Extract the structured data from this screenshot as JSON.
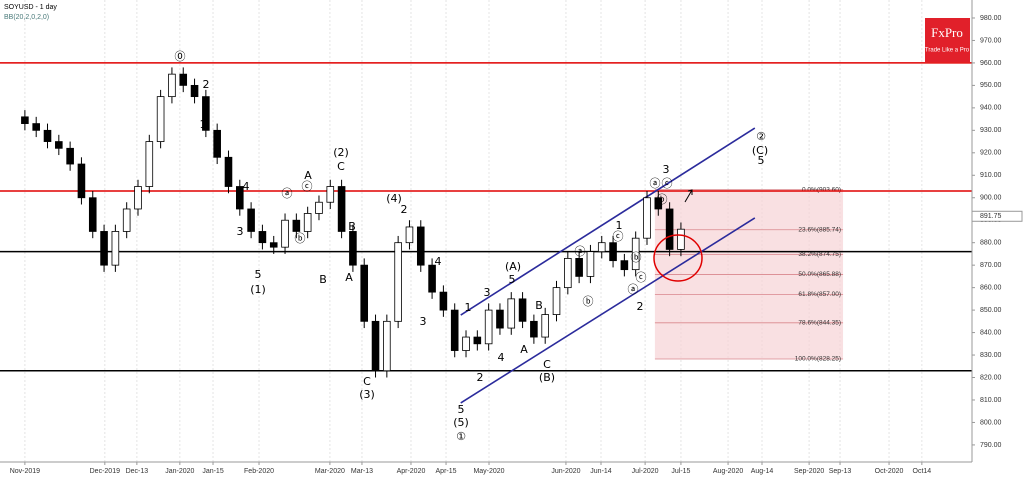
{
  "chart_data": {
    "type": "candlestick",
    "title": "SOYUSD - 1 day",
    "subtitle": "BB(20,2,0,2,0)",
    "logo": {
      "name": "FxPro",
      "tagline": "Trade Like a Pro",
      "color": "#e1202a"
    },
    "up_color": "#ffffff",
    "down_color": "#000000",
    "x": [
      0,
      3,
      6,
      9,
      12,
      15,
      18,
      21,
      24,
      27,
      30,
      33,
      36,
      39,
      42,
      45,
      48,
      51,
      54,
      57,
      60,
      63,
      66,
      69,
      72,
      75,
      78,
      81,
      84,
      87,
      90,
      93,
      96,
      99,
      102,
      105,
      108,
      111,
      114,
      117,
      120,
      123,
      126,
      129,
      132,
      135,
      138,
      141,
      144,
      147,
      150,
      153,
      156,
      159,
      162,
      165,
      168,
      171,
      174
    ],
    "open": [
      936,
      933,
      930,
      925,
      922,
      915,
      900,
      885,
      870,
      885,
      895,
      905,
      925,
      945,
      955,
      950,
      945,
      930,
      918,
      905,
      895,
      885,
      880,
      878,
      890,
      885,
      893,
      898,
      905,
      885,
      870,
      845,
      823,
      845,
      880,
      887,
      870,
      858,
      850,
      832,
      838,
      835,
      850,
      842,
      855,
      845,
      838,
      848,
      860,
      873,
      865,
      876,
      880,
      872,
      868,
      882,
      900,
      895,
      877
    ],
    "high": [
      939,
      936,
      933,
      928,
      925,
      918,
      903,
      888,
      888,
      898,
      908,
      928,
      948,
      958,
      958,
      953,
      948,
      933,
      921,
      908,
      898,
      888,
      883,
      893,
      893,
      896,
      901,
      908,
      908,
      888,
      873,
      848,
      848,
      883,
      890,
      890,
      873,
      861,
      853,
      841,
      841,
      853,
      853,
      858,
      858,
      848,
      851,
      863,
      876,
      876,
      879,
      883,
      883,
      875,
      885,
      903,
      903,
      898,
      889
    ],
    "low": [
      930,
      927,
      922,
      919,
      912,
      897,
      882,
      867,
      867,
      882,
      892,
      902,
      922,
      942,
      947,
      942,
      927,
      915,
      902,
      892,
      882,
      877,
      875,
      875,
      882,
      882,
      890,
      895,
      882,
      867,
      842,
      820,
      820,
      842,
      877,
      867,
      855,
      847,
      829,
      829,
      832,
      832,
      839,
      839,
      842,
      835,
      835,
      845,
      857,
      862,
      862,
      873,
      869,
      865,
      865,
      879,
      892,
      874,
      874
    ],
    "close": [
      933,
      930,
      925,
      922,
      915,
      900,
      885,
      870,
      885,
      895,
      905,
      925,
      945,
      955,
      950,
      945,
      930,
      918,
      905,
      895,
      885,
      880,
      878,
      890,
      885,
      893,
      898,
      905,
      885,
      870,
      845,
      823,
      845,
      880,
      887,
      870,
      858,
      850,
      832,
      838,
      835,
      850,
      842,
      855,
      845,
      838,
      848,
      860,
      873,
      865,
      876,
      880,
      872,
      868,
      882,
      900,
      895,
      877,
      886
    ],
    "xlim": [
      -6.6,
      251.2
    ],
    "xticks": [
      {
        "value": 0,
        "label": "Nov-2019"
      },
      {
        "value": 21.2,
        "label": "Dec-2019"
      },
      {
        "value": 29.7,
        "label": "Dec-13"
      },
      {
        "value": 41.1,
        "label": "Jan-2020"
      },
      {
        "value": 49.9,
        "label": "Jan-15"
      },
      {
        "value": 62.1,
        "label": "Feb-2020"
      },
      {
        "value": 80.9,
        "label": "Mar-2020"
      },
      {
        "value": 89.4,
        "label": "Mar-13"
      },
      {
        "value": 102.4,
        "label": "Apr-2020"
      },
      {
        "value": 111.7,
        "label": "Apr-15"
      },
      {
        "value": 123.1,
        "label": "May-2020"
      },
      {
        "value": 143.5,
        "label": "Jun-2020"
      },
      {
        "value": 152.8,
        "label": "Jun-14"
      },
      {
        "value": 164.5,
        "label": "Jul-2020"
      },
      {
        "value": 174,
        "label": "Jul-15"
      },
      {
        "value": 186.5,
        "label": "Aug-2020"
      },
      {
        "value": 195.5,
        "label": "Aug-14"
      },
      {
        "value": 208,
        "label": "Sep-2020"
      },
      {
        "value": 216.2,
        "label": "Sep-13"
      },
      {
        "value": 229.2,
        "label": "Oct-2020"
      },
      {
        "value": 237.9,
        "label": "Oct14"
      }
    ],
    "ylim": [
      782.4,
      988
    ],
    "yticks": [
      {
        "value": 980,
        "label": "980.00"
      },
      {
        "value": 970,
        "label": "970.00"
      },
      {
        "value": 960,
        "label": "960.00"
      },
      {
        "value": 950,
        "label": "950.00"
      },
      {
        "value": 940,
        "label": "940.00"
      },
      {
        "value": 930,
        "label": "930.00"
      },
      {
        "value": 920,
        "label": "920.00"
      },
      {
        "value": 910,
        "label": "910.00"
      },
      {
        "value": 900,
        "label": "900.00"
      },
      {
        "value": 890,
        "label": "890.00"
      },
      {
        "value": 880,
        "label": "880.00"
      },
      {
        "value": 870,
        "label": "870.00"
      },
      {
        "value": 860,
        "label": "860.00"
      },
      {
        "value": 850,
        "label": "850.00"
      },
      {
        "value": 840,
        "label": "840.00"
      },
      {
        "value": 830,
        "label": "830.00"
      },
      {
        "value": 820,
        "label": "820.00"
      },
      {
        "value": 810,
        "label": "810.00"
      },
      {
        "value": 800,
        "label": "800.00"
      },
      {
        "value": 790,
        "label": "790.00"
      }
    ],
    "grid": true,
    "last_price": 891.75,
    "levels": [
      {
        "value": 960,
        "color": "#e00000"
      },
      {
        "value": 903,
        "color": "#e00000"
      },
      {
        "value": 876,
        "color": "#000000"
      },
      {
        "value": 823,
        "color": "#000000"
      }
    ],
    "channel": {
      "color": "#2b2b9c",
      "lines": [
        {
          "x": [
            115.6,
            193.6
          ],
          "y": [
            847.8,
            931.0
          ]
        },
        {
          "x": [
            115.6,
            193.6
          ],
          "y": [
            808.7,
            891.0
          ]
        }
      ]
    },
    "fib": {
      "x": [
        167.1,
        217
      ],
      "color": "#f6d3d5",
      "line_color": "#d9868c",
      "levels": [
        {
          "value": 903.6,
          "label": "0.0%(903.60)"
        },
        {
          "value": 885.74,
          "label": "23.6%(885.74)"
        },
        {
          "value": 874.75,
          "label": "38.2%(874.75)"
        },
        {
          "value": 865.88,
          "label": "50.0%(865.88)"
        },
        {
          "value": 857,
          "label": "61.8%(857.00)"
        },
        {
          "value": 844.35,
          "label": "78.6%(844.35)"
        },
        {
          "value": 828.25,
          "label": "100.0%(828.25)"
        }
      ]
    },
    "wave_labels": [
      "⓪",
      "2",
      "1",
      "4",
      "3",
      "5",
      "(1)",
      "ⓐ",
      "ⓑ",
      "ⓒ",
      "A",
      "B",
      "(2)",
      "C",
      "2",
      "(4)",
      "B",
      "A",
      "4",
      "3",
      "C",
      "(3)",
      "5",
      "(5)",
      "①",
      "1",
      "3",
      "2",
      "4",
      "(A)",
      "5",
      "A",
      "B",
      "C",
      "(B)",
      "ⓐ",
      "ⓑ",
      "1",
      "ⓒ",
      "ⓑ",
      "ⓐ",
      "ⓒ",
      "2",
      "ⓐ",
      "3",
      "ⓒ",
      "ⓑ",
      "②",
      "(C)",
      "5"
    ]
  }
}
